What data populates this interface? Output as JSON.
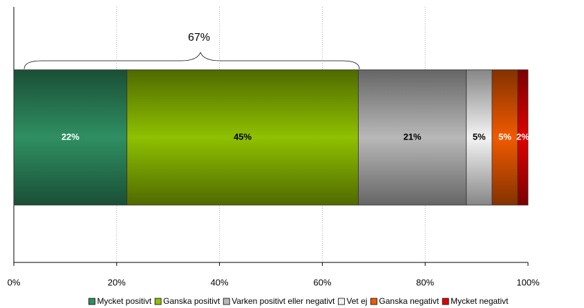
{
  "chart_data": {
    "type": "stacked-bar-horizontal",
    "annotation": "67%",
    "series": [
      {
        "name": "Mycket positivt",
        "color": "#2f8f62",
        "label_color": "#ffffff",
        "values": [
          22
        ],
        "value_labels": [
          "22%"
        ]
      },
      {
        "name": "Ganska positivt",
        "color": "#8fc000",
        "label_color": "#000000",
        "values": [
          45
        ],
        "value_labels": [
          "45%"
        ]
      },
      {
        "name": "Varken positivt eller negativt",
        "color": "#b8b8b8",
        "label_color": "#000000",
        "values": [
          21
        ],
        "value_labels": [
          "21%"
        ]
      },
      {
        "name": "Vet ej",
        "color": "#f4f4f4",
        "label_color": "#000000",
        "values": [
          5
        ],
        "value_labels": [
          "5%"
        ]
      },
      {
        "name": "Ganska negativt",
        "color": "#f05a00",
        "label_color": "#ffffff",
        "values": [
          5
        ],
        "value_labels": [
          "5%"
        ]
      },
      {
        "name": "Mycket negativt",
        "color": "#e00000",
        "label_color": "#ffffff",
        "values": [
          2
        ],
        "value_labels": [
          "2%"
        ]
      }
    ],
    "xlim": [
      0,
      100
    ],
    "xticks": [
      {
        "value": 0,
        "label": "0%"
      },
      {
        "value": 20,
        "label": "20%"
      },
      {
        "value": 40,
        "label": "40%"
      },
      {
        "value": 60,
        "label": "60%"
      },
      {
        "value": 80,
        "label": "80%"
      },
      {
        "value": 100,
        "label": "100%"
      }
    ],
    "grid": true
  }
}
